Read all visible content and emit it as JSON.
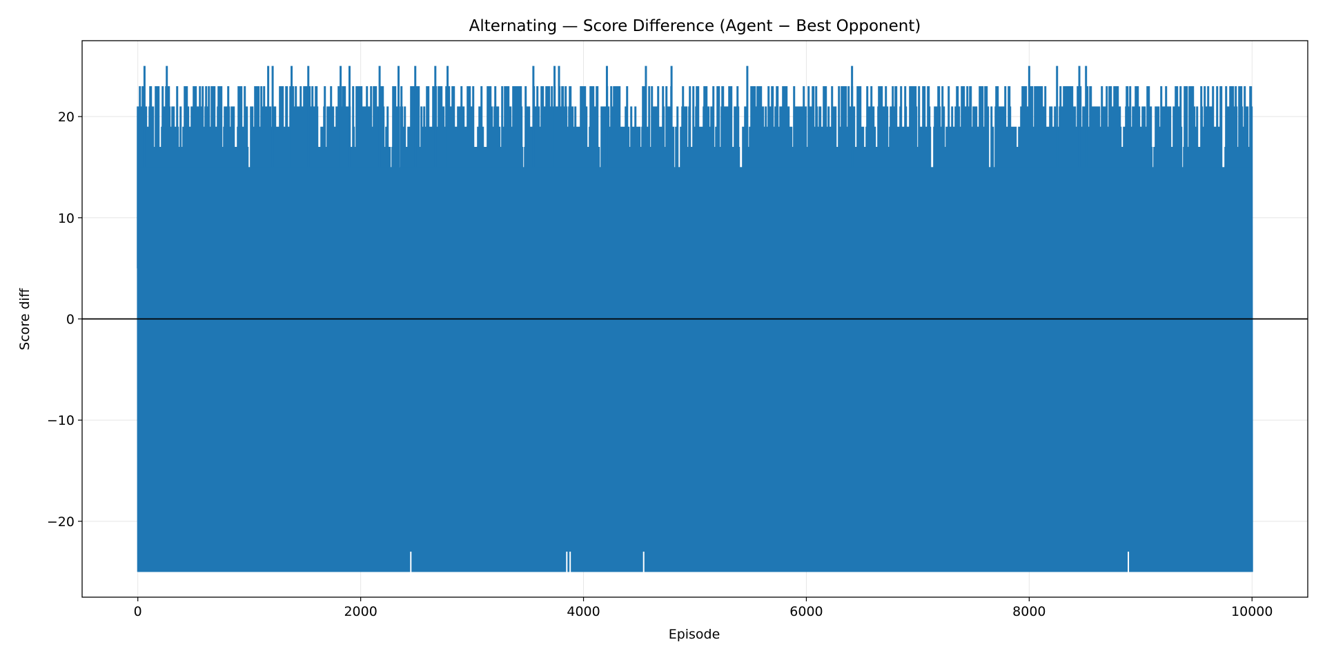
{
  "chart_data": {
    "type": "line",
    "title": "Alternating — Score Difference (Agent − Best Opponent)",
    "xlabel": "Episode",
    "ylabel": "Score diff",
    "xlim": [
      -500,
      10500
    ],
    "ylim": [
      -27.5,
      27.5
    ],
    "xticks": [
      0,
      2000,
      4000,
      6000,
      8000,
      10000
    ],
    "xtick_labels": [
      "0",
      "2000",
      "4000",
      "6000",
      "8000",
      "10000"
    ],
    "yticks": [
      -20,
      -10,
      0,
      10,
      20
    ],
    "ytick_labels": [
      "−20",
      "−10",
      "0",
      "10",
      "20"
    ],
    "grid": true,
    "reference_line": {
      "y": 0,
      "color": "#000000"
    },
    "series": [
      {
        "color": "#1f77b4",
        "x_range": [
          0,
          10000
        ],
        "min": -25,
        "max": 25,
        "peaks": [
          {
            "x": 60,
            "y": 25
          },
          {
            "x": 260,
            "y": 25
          },
          {
            "x": 1170,
            "y": 25
          },
          {
            "x": 1210,
            "y": 25
          },
          {
            "x": 1380,
            "y": 25
          },
          {
            "x": 1530,
            "y": 25
          },
          {
            "x": 1820,
            "y": 25
          },
          {
            "x": 1900,
            "y": 25
          },
          {
            "x": 2170,
            "y": 25
          },
          {
            "x": 2340,
            "y": 25
          },
          {
            "x": 2490,
            "y": 25
          },
          {
            "x": 2670,
            "y": 25
          },
          {
            "x": 2780,
            "y": 25
          },
          {
            "x": 3550,
            "y": 25
          },
          {
            "x": 3740,
            "y": 25
          },
          {
            "x": 3780,
            "y": 25
          },
          {
            "x": 4210,
            "y": 25
          },
          {
            "x": 4560,
            "y": 25
          },
          {
            "x": 4790,
            "y": 25
          },
          {
            "x": 5470,
            "y": 25
          },
          {
            "x": 6410,
            "y": 25
          },
          {
            "x": 8000,
            "y": 25
          },
          {
            "x": 8250,
            "y": 25
          },
          {
            "x": 8450,
            "y": 25
          },
          {
            "x": 8510,
            "y": 25
          }
        ],
        "troughs": [
          {
            "x": 3850,
            "y": -23
          },
          {
            "x": 3880,
            "y": -23
          },
          {
            "x": 2450,
            "y": -23
          },
          {
            "x": 4540,
            "y": -23
          },
          {
            "x": 8890,
            "y": -23
          }
        ]
      }
    ]
  }
}
